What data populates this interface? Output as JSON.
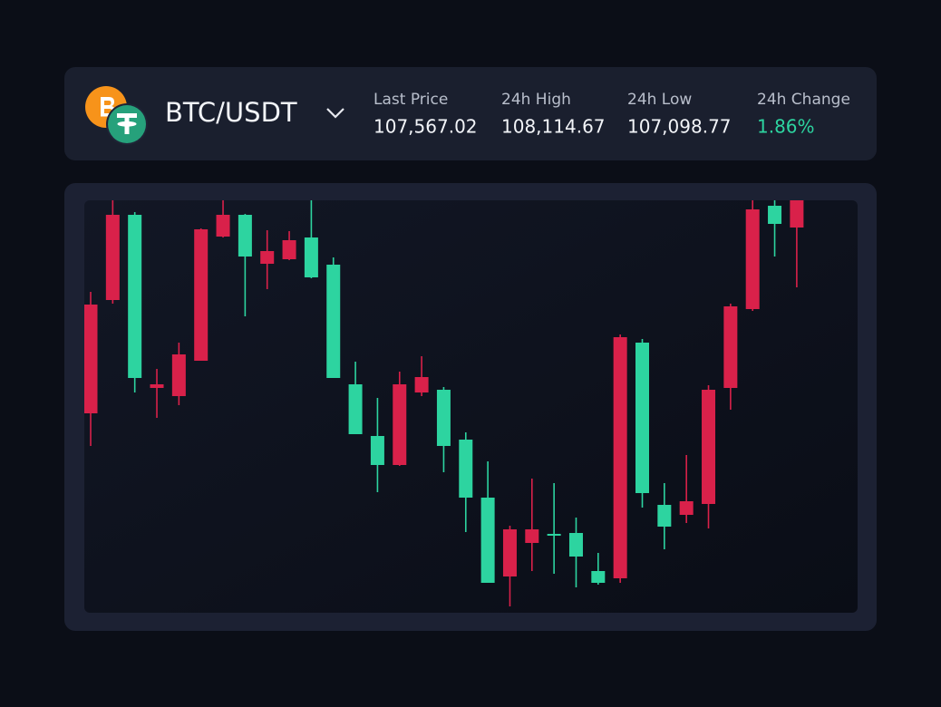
{
  "header": {
    "pair": "BTC/USDT",
    "stats": [
      {
        "label": "Last Price",
        "value": "107,567.02"
      },
      {
        "label": "24h High",
        "value": "108,114.67"
      },
      {
        "label": "24h Low",
        "value": "107,098.77"
      },
      {
        "label": "24h Change",
        "value": "1.86%"
      }
    ]
  },
  "chart_data": {
    "type": "candlestick",
    "ylim": [
      0,
      455
    ],
    "up_color": "#2dd4a0",
    "down_color": "#d9214a",
    "candles": [
      {
        "open": 340,
        "high": 354,
        "low": 184,
        "close": 220
      },
      {
        "open": 439,
        "high": 455,
        "low": 341,
        "close": 345
      },
      {
        "open": 259,
        "high": 442,
        "low": 243,
        "close": 439
      },
      {
        "open": 252,
        "high": 269,
        "low": 215,
        "close": 248
      },
      {
        "open": 285,
        "high": 298,
        "low": 229,
        "close": 239
      },
      {
        "open": 423,
        "high": 424,
        "low": 278,
        "close": 278
      },
      {
        "open": 439,
        "high": 455,
        "low": 414,
        "close": 415
      },
      {
        "open": 393,
        "high": 440,
        "low": 327,
        "close": 439
      },
      {
        "open": 399,
        "high": 422,
        "low": 357,
        "close": 385
      },
      {
        "open": 411,
        "high": 421,
        "low": 389,
        "close": 390
      },
      {
        "open": 370,
        "high": 455,
        "low": 369,
        "close": 414
      },
      {
        "open": 259,
        "high": 392,
        "low": 259,
        "close": 384
      },
      {
        "open": 197,
        "high": 277,
        "low": 197,
        "close": 252
      },
      {
        "open": 163,
        "high": 237,
        "low": 133,
        "close": 195
      },
      {
        "open": 252,
        "high": 266,
        "low": 162,
        "close": 163
      },
      {
        "open": 260,
        "high": 283,
        "low": 239,
        "close": 243
      },
      {
        "open": 184,
        "high": 249,
        "low": 155,
        "close": 246
      },
      {
        "open": 127,
        "high": 199,
        "low": 89,
        "close": 191
      },
      {
        "open": 33,
        "high": 167,
        "low": 33,
        "close": 127
      },
      {
        "open": 92,
        "high": 96,
        "low": 7,
        "close": 40
      },
      {
        "open": 92,
        "high": 148,
        "low": 46,
        "close": 77
      },
      {
        "open": 85,
        "high": 143,
        "low": 43,
        "close": 87
      },
      {
        "open": 62,
        "high": 105,
        "low": 28,
        "close": 88
      },
      {
        "open": 33,
        "high": 66,
        "low": 31,
        "close": 46
      },
      {
        "open": 304,
        "high": 307,
        "low": 33,
        "close": 38
      },
      {
        "open": 132,
        "high": 302,
        "low": 116,
        "close": 298
      },
      {
        "open": 95,
        "high": 143,
        "low": 70,
        "close": 119
      },
      {
        "open": 123,
        "high": 174,
        "low": 99,
        "close": 108
      },
      {
        "open": 246,
        "high": 251,
        "low": 93,
        "close": 120
      },
      {
        "open": 338,
        "high": 341,
        "low": 224,
        "close": 248
      },
      {
        "open": 445,
        "high": 455,
        "low": 333,
        "close": 335
      },
      {
        "open": 429,
        "high": 455,
        "low": 393,
        "close": 449
      },
      {
        "open": 455,
        "high": 455,
        "low": 359,
        "close": 425
      }
    ]
  }
}
